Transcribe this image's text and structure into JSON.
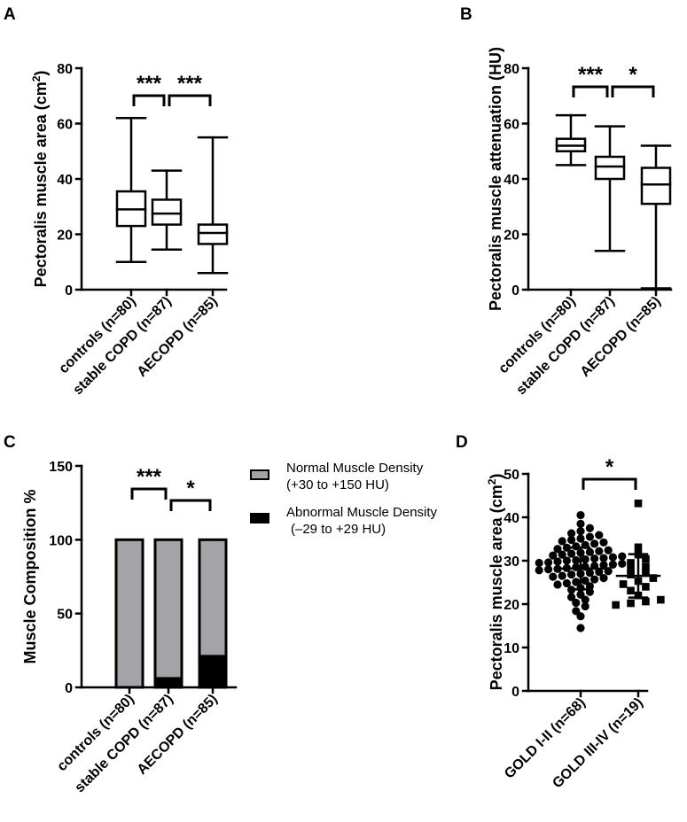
{
  "colors": {
    "ink": "#000000",
    "bar_normal": "#a3a3a8",
    "bar_abnormal": "#000000",
    "background": "#ffffff"
  },
  "chart_data": [
    {
      "panel": "A",
      "type": "boxplot",
      "ylabel": "Pectoralis muscle area (cm",
      "ylabel_sup": "2",
      "ylabel_end": ")",
      "ylim": [
        0,
        80
      ],
      "yticks": [
        "0",
        "20",
        "40",
        "60",
        "80"
      ],
      "categories": [
        "controls (n=80)",
        "stable COPD (n=87)",
        "AECOPD (n=85)"
      ],
      "boxes": [
        {
          "min": 10,
          "q1": 23,
          "median": 29,
          "q3": 35.5,
          "max": 62
        },
        {
          "min": 14.5,
          "q1": 23.5,
          "median": 27.5,
          "q3": 32.5,
          "max": 43
        },
        {
          "min": 6,
          "q1": 16.5,
          "median": 20.5,
          "q3": 23.5,
          "max": 55
        }
      ],
      "annotations": [
        {
          "from": 0,
          "to": 1,
          "text": "***"
        },
        {
          "from": 1,
          "to": 2,
          "text": "***"
        }
      ]
    },
    {
      "panel": "B",
      "type": "boxplot",
      "ylabel": "Pectoralis muscle attenuation (HU)",
      "ylim": [
        0,
        80
      ],
      "yticks": [
        "0",
        "20",
        "40",
        "60",
        "80"
      ],
      "categories": [
        "controls (n=80)",
        "stable COPD (n=87)",
        "AECOPD (n=85)"
      ],
      "boxes": [
        {
          "min": 45,
          "q1": 50,
          "median": 52,
          "q3": 54.5,
          "max": 63
        },
        {
          "min": 14,
          "q1": 40,
          "median": 44.5,
          "q3": 48,
          "max": 59
        },
        {
          "min": 0.5,
          "q1": 31,
          "median": 38,
          "q3": 44,
          "max": 52
        }
      ],
      "annotations": [
        {
          "from": 0,
          "to": 1,
          "text": "***"
        },
        {
          "from": 1,
          "to": 2,
          "text": "*"
        }
      ]
    },
    {
      "panel": "C",
      "type": "stacked_bar",
      "ylabel": "Muscle Composition %",
      "ylim": [
        0,
        150
      ],
      "yticks": [
        "0",
        "50",
        "100",
        "150"
      ],
      "categories": [
        "controls (n=80)",
        "stable COPD (n=87)",
        "AECOPD (n=85)"
      ],
      "series": [
        {
          "name": "Abnormal Muscle Density",
          "range": "(–29 to +29 HU)",
          "values": [
            0,
            7,
            22
          ]
        },
        {
          "name": "Normal Muscle Density",
          "range": "(+30 to +150 HU)",
          "values": [
            100,
            93,
            78
          ]
        }
      ],
      "annotations": [
        {
          "from": 0,
          "to": 1,
          "text": "***"
        },
        {
          "from": 1,
          "to": 2,
          "text": "*"
        }
      ]
    },
    {
      "panel": "D",
      "type": "scatter",
      "ylabel": "Pectoralis muscle area (cm",
      "ylabel_sup": "2",
      "ylabel_end": ")",
      "ylim": [
        0,
        50
      ],
      "yticks": [
        "0",
        "10",
        "20",
        "30",
        "40",
        "50"
      ],
      "categories": [
        "GOLD I-II (n=68)",
        "GOLD III-IV (n=19)"
      ],
      "groups": [
        {
          "name": "GOLD I-II (n=68)",
          "marker": "circle",
          "mean": 28.2,
          "sd_low": 23.4,
          "sd_high": 33.0,
          "values": [
            14.5,
            17.2,
            18.4,
            19.5,
            20.3,
            21.0,
            21.6,
            22.2,
            22.8,
            23.3,
            23.7,
            24.1,
            24.5,
            24.8,
            25.1,
            25.4,
            25.7,
            26.0,
            26.3,
            26.5,
            26.8,
            27.0,
            27.2,
            27.4,
            27.6,
            27.8,
            28.0,
            28.1,
            28.3,
            28.5,
            28.6,
            28.8,
            29.0,
            29.1,
            29.3,
            29.5,
            29.6,
            29.8,
            30.0,
            30.1,
            30.3,
            30.5,
            30.6,
            30.8,
            31.0,
            31.2,
            31.4,
            31.6,
            31.8,
            32.0,
            32.2,
            32.4,
            32.7,
            33.0,
            33.3,
            33.6,
            33.9,
            34.2,
            34.5,
            34.8,
            35.1,
            35.5,
            35.9,
            36.3,
            36.8,
            37.5,
            38.5,
            40.5
          ]
        },
        {
          "name": "GOLD III-IV (n=19)",
          "marker": "square",
          "mean": 26.5,
          "sd_low": 21.5,
          "sd_high": 31.5,
          "values": [
            19.8,
            20.2,
            20.6,
            21.0,
            22.0,
            23.1,
            24.0,
            24.6,
            25.3,
            26.0,
            26.8,
            27.4,
            28.0,
            28.6,
            29.5,
            30.4,
            31.4,
            33.1,
            43.2
          ]
        }
      ],
      "annotations": [
        {
          "from": 0,
          "to": 1,
          "text": "*"
        }
      ]
    }
  ]
}
